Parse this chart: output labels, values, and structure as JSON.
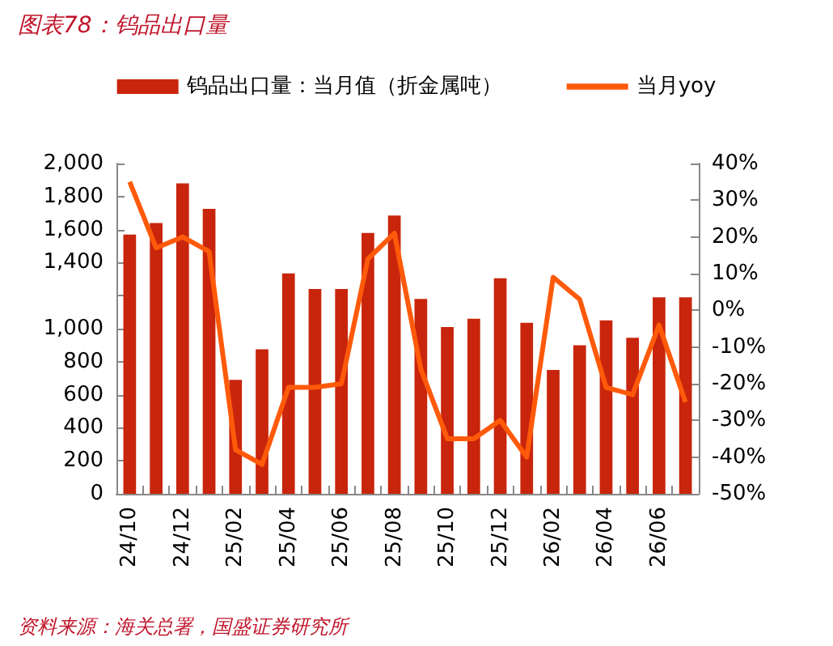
{
  "chart_data": {
    "type": "bar",
    "title": "图表78：钨品出口量",
    "categories": [
      "24/10",
      null,
      "24/12",
      null,
      "25/02",
      null,
      "25/04",
      null,
      "25/06",
      null,
      "25/08",
      null,
      "25/10",
      null,
      "25/12",
      null,
      "26/02",
      null,
      "26/04",
      null,
      "26/06",
      null
    ],
    "series": [
      {
        "name": "钨品出口量：当月值（折金属吨）",
        "color": "#c8250c",
        "values": [
          1570,
          1640,
          1880,
          1725,
          690,
          875,
          1335,
          1240,
          1240,
          1580,
          1685,
          1180,
          1010,
          1060,
          1305,
          1035,
          750,
          900,
          1050,
          945,
          1190,
          1190
        ]
      },
      {
        "name": "当月yoy",
        "type": "line",
        "axis": "y2",
        "color": "#ff5a0a",
        "values": [
          35,
          17,
          20,
          16,
          -38,
          -42,
          -21,
          -21,
          -20,
          14,
          21,
          -16,
          -35,
          -35,
          -30,
          -40,
          9,
          3,
          -21,
          -23,
          -4,
          -25
        ]
      }
    ],
    "ylim": [
      0,
      2000
    ],
    "yticks": [
      0,
      200,
      400,
      600,
      800,
      {
        "value": 1000,
        "label": "1,000"
      },
      {
        "value": 1200,
        "label": null
      },
      {
        "value": 1400,
        "label": "1,400"
      },
      {
        "value": 1600,
        "label": "1,600"
      },
      {
        "value": 1800,
        "label": "1,800"
      },
      {
        "value": 2000,
        "label": "2,000"
      }
    ],
    "y2lim": [
      -50,
      40
    ],
    "y2ticks": [
      {
        "value": -50,
        "label": "-50%"
      },
      {
        "value": -40,
        "label": "-40%"
      },
      {
        "value": -30,
        "label": "-30%"
      },
      {
        "value": -20,
        "label": "-20%"
      },
      {
        "value": -10,
        "label": "-10%"
      },
      {
        "value": 0,
        "label": "0%"
      },
      {
        "value": 10,
        "label": "10%"
      },
      {
        "value": 20,
        "label": "20%"
      },
      {
        "value": 30,
        "label": "30%"
      },
      {
        "value": 40,
        "label": "40%"
      }
    ],
    "legend": "top",
    "grid": false,
    "marker": "none",
    "annotations": [
      "资料来源：海关总署，国盛证券研究所"
    ]
  }
}
